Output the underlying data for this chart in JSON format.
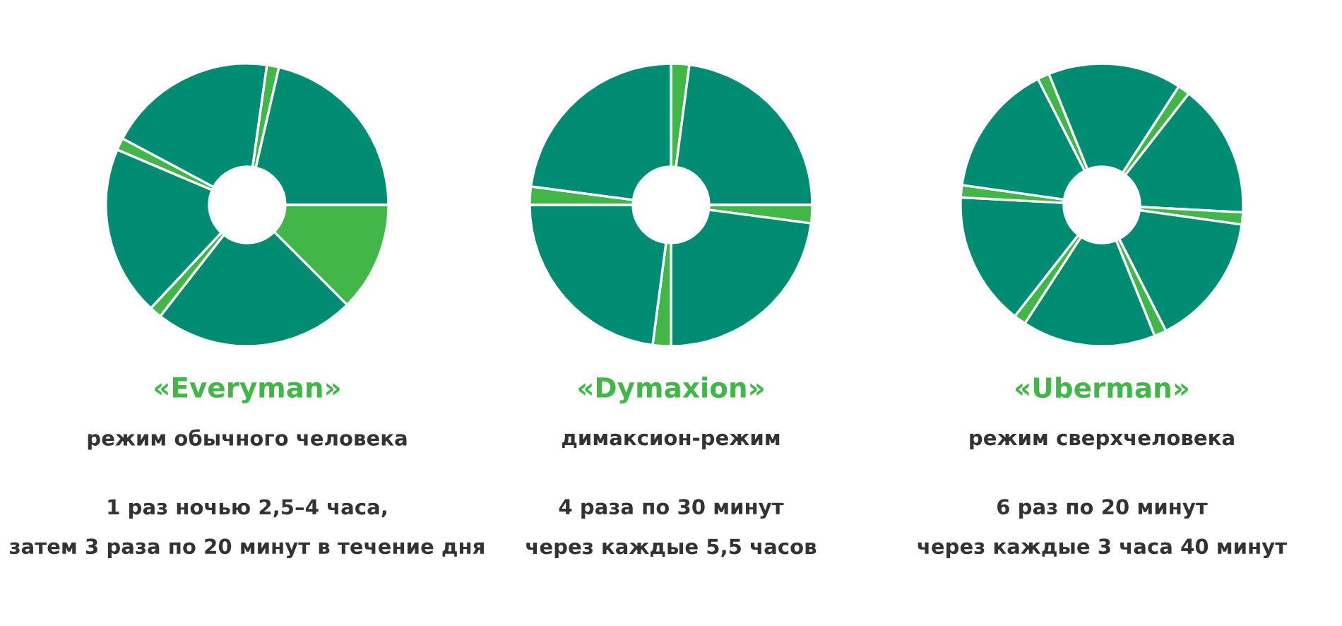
{
  "chart_data": [
    {
      "type": "donut",
      "title": "«Everyman»",
      "subtitle": "режим обычного человека",
      "annotations": [
        "1 раз ночью 2,5–4 часа,",
        "затем 3 раза по 20 минут в течение дня"
      ],
      "categories": [
        null,
        null,
        null,
        null,
        null,
        null,
        null,
        null
      ],
      "values": [
        1.39,
        21.39,
        12.5,
        23.06,
        1.39,
        19.44,
        1.39,
        19.44
      ],
      "colors": [
        "#43b649",
        "#008c72",
        "#43b649",
        "#008c72",
        "#43b649",
        "#008c72",
        "#43b649",
        "#008c72"
      ]
    },
    {
      "type": "donut",
      "title": "«Dymaxion»",
      "subtitle": "димаксион-режим",
      "annotations": [
        "4 раза по 30 минут",
        "через каждые 5,5 часов"
      ],
      "categories": [
        null,
        null,
        null,
        null,
        null,
        null,
        null,
        null
      ],
      "values": [
        2.08,
        22.92,
        2.08,
        22.92,
        2.08,
        22.92,
        2.08,
        22.92
      ],
      "colors": [
        "#43b649",
        "#008c72",
        "#43b649",
        "#008c72",
        "#43b649",
        "#008c72",
        "#43b649",
        "#008c72"
      ]
    },
    {
      "type": "donut",
      "title": "«Uberman»",
      "subtitle": "режим сверхчеловека",
      "annotations": [
        "6 раз по 20 минут",
        "через каждые 3 часа 40 минут"
      ],
      "categories": [
        null,
        null,
        null,
        null,
        null,
        null,
        null,
        null,
        null,
        null,
        null,
        null
      ],
      "values": [
        1.39,
        15.28,
        1.39,
        15.28,
        1.39,
        15.28,
        1.39,
        15.28,
        1.39,
        15.28,
        1.39,
        15.28
      ],
      "colors": [
        "#43b649",
        "#008c72",
        "#43b649",
        "#008c72",
        "#43b649",
        "#008c72",
        "#43b649",
        "#008c72",
        "#43b649",
        "#008c72",
        "#43b649",
        "#008c72"
      ]
    }
  ]
}
